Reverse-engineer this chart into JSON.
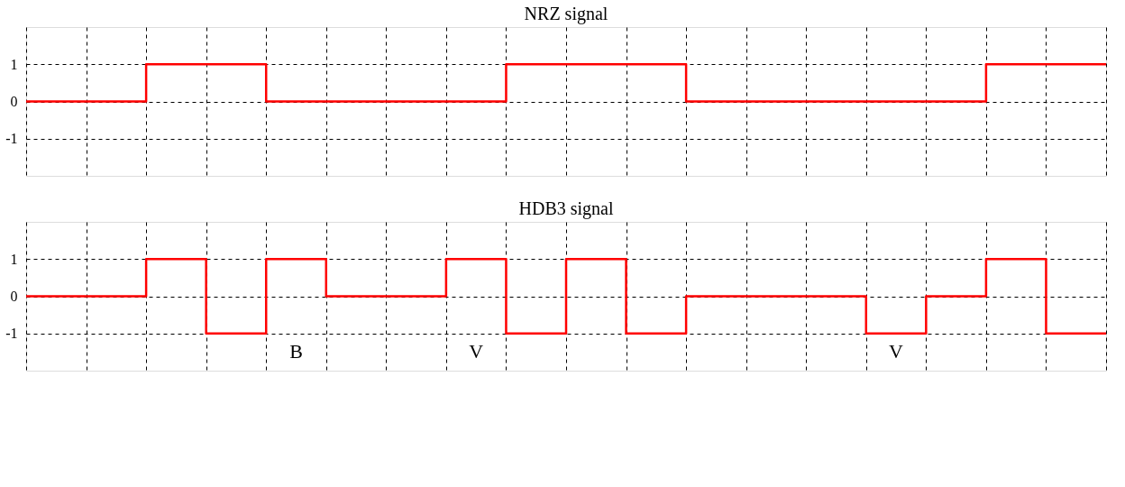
{
  "chart_data": [
    {
      "type": "step",
      "title": "NRZ signal",
      "categories": [
        null,
        null,
        null,
        null,
        null,
        null,
        null,
        null,
        null,
        null,
        null,
        null,
        null,
        null,
        null,
        null,
        null,
        null,
        null
      ],
      "values": [
        0,
        0,
        1,
        1,
        0,
        0,
        0,
        0,
        1,
        1,
        1,
        0,
        0,
        0,
        0,
        0,
        1,
        1,
        1
      ],
      "color": "#ff0000",
      "ylim": [
        -2,
        2
      ],
      "yticks": [
        -1,
        0,
        1
      ],
      "grid": true,
      "line_style": "solid",
      "tick_labels": "y"
    },
    {
      "type": "step",
      "title": "HDB3 signal",
      "categories": [
        null,
        null,
        null,
        null,
        null,
        null,
        null,
        null,
        null,
        null,
        null,
        null,
        null,
        null,
        null,
        null,
        null,
        null,
        null
      ],
      "values": [
        0,
        0,
        1,
        -1,
        1,
        0,
        0,
        1,
        -1,
        1,
        -1,
        0,
        0,
        0,
        -1,
        0,
        1,
        -1,
        -1
      ],
      "color": "#ff0000",
      "ylim": [
        -2,
        2
      ],
      "yticks": [
        -1,
        0,
        1
      ],
      "grid": true,
      "line_style": "solid",
      "tick_labels": "y",
      "annotations": [
        "B",
        "V",
        "V"
      ]
    }
  ]
}
